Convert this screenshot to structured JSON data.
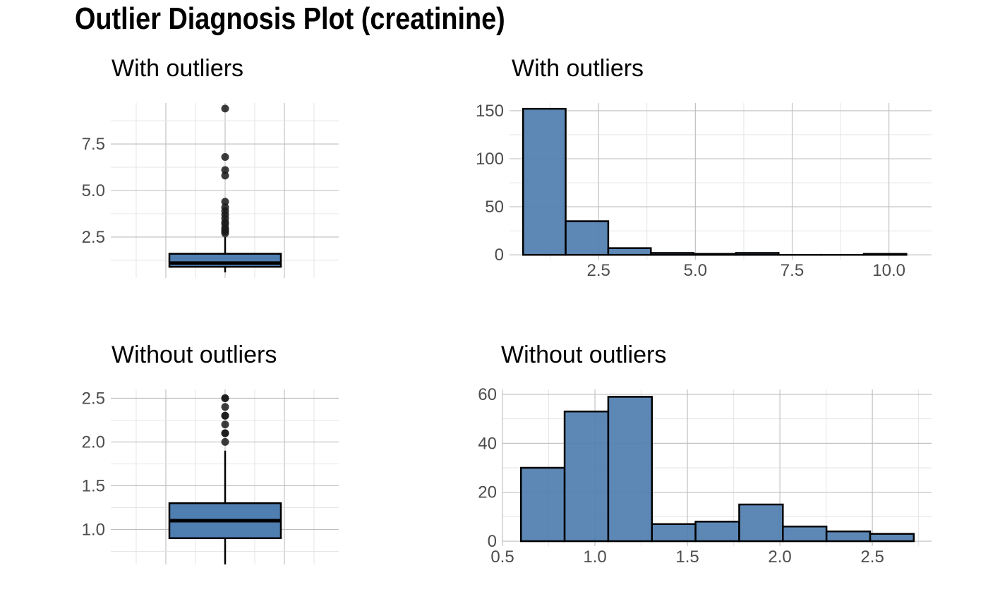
{
  "title": "Outlier Diagnosis Plot (creatinine)",
  "colors": {
    "fill": "#4f7eb0",
    "outline": "#000000",
    "grid": "#bdbdbd",
    "text": "#4d4d4d"
  },
  "chart_data": [
    {
      "type": "box",
      "title": "With outliers",
      "yticks": [
        "2.5",
        "5.0",
        "7.5"
      ],
      "ytick_values": [
        2.5,
        5.0,
        7.5
      ],
      "ylim": [
        0.3,
        9.7
      ],
      "whisker_low": 0.6,
      "q1": 0.9,
      "median": 1.1,
      "q3": 1.6,
      "whisker_high": 2.5,
      "outliers": [
        2.7,
        2.8,
        2.9,
        3.0,
        3.2,
        3.3,
        3.5,
        3.7,
        3.9,
        4.1,
        4.4,
        5.8,
        6.1,
        6.8,
        9.4
      ]
    },
    {
      "type": "bar",
      "title": "With outliers",
      "xticks": [
        "2.5",
        "5.0",
        "7.5",
        "10.0"
      ],
      "xtick_values": [
        2.5,
        5.0,
        7.5,
        10.0
      ],
      "yticks": [
        "0",
        "50",
        "100",
        "150"
      ],
      "ytick_values": [
        0,
        50,
        100,
        150
      ],
      "xlim": [
        0.2,
        11.1
      ],
      "ylim": [
        -5,
        158
      ],
      "bin_width": 1.1,
      "bin_start": 0.55,
      "counts": [
        152,
        35,
        7,
        2,
        1,
        2,
        0,
        0,
        1
      ]
    },
    {
      "type": "box",
      "title": "Without outliers",
      "yticks": [
        "1.0",
        "1.5",
        "2.0",
        "2.5"
      ],
      "ytick_values": [
        1.0,
        1.5,
        2.0,
        2.5
      ],
      "ylim": [
        0.6,
        2.6
      ],
      "whisker_low": 0.6,
      "q1": 0.9,
      "median": 1.1,
      "q3": 1.3,
      "whisker_high": 1.9,
      "outliers": [
        2.0,
        2.1,
        2.1,
        2.2,
        2.3,
        2.3,
        2.4,
        2.5,
        2.5
      ]
    },
    {
      "type": "bar",
      "title": "Without outliers",
      "xticks": [
        "0.5",
        "1.0",
        "1.5",
        "2.0",
        "2.5"
      ],
      "xtick_values": [
        0.5,
        1.0,
        1.5,
        2.0,
        2.5
      ],
      "yticks": [
        "0",
        "20",
        "40",
        "60"
      ],
      "ytick_values": [
        0,
        20,
        40,
        60
      ],
      "xlim": [
        0.5,
        2.82
      ],
      "ylim": [
        -2,
        62
      ],
      "bin_width": 0.236,
      "bin_start": 0.6,
      "counts": [
        30,
        53,
        59,
        7,
        8,
        15,
        6,
        4,
        3
      ]
    }
  ]
}
